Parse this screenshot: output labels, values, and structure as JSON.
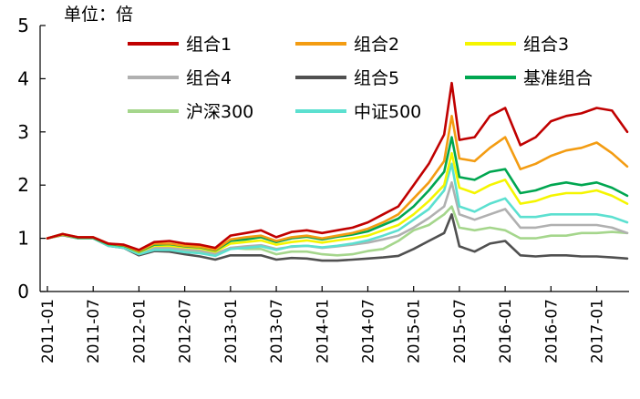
{
  "chart_data": {
    "type": "line",
    "unit_label": "单位：倍",
    "xlabel": "",
    "ylabel": "",
    "ylim": [
      0,
      5
    ],
    "y_ticks": [
      "0",
      "1",
      "2",
      "3",
      "4",
      "5"
    ],
    "x_range": [
      "2011-01",
      "2017-05"
    ],
    "x_ticks": [
      "2011-01",
      "2011-07",
      "2012-01",
      "2012-07",
      "2013-01",
      "2013-07",
      "2014-01",
      "2014-07",
      "2015-01",
      "2015-07",
      "2016-01",
      "2016-07",
      "2017-01"
    ],
    "grid": false,
    "legend_position": "top",
    "x": [
      "2011-01",
      "2011-03",
      "2011-05",
      "2011-07",
      "2011-09",
      "2011-11",
      "2012-01",
      "2012-03",
      "2012-05",
      "2012-07",
      "2012-09",
      "2012-11",
      "2013-01",
      "2013-03",
      "2013-05",
      "2013-07",
      "2013-09",
      "2013-11",
      "2014-01",
      "2014-03",
      "2014-05",
      "2014-07",
      "2014-09",
      "2014-11",
      "2015-01",
      "2015-03",
      "2015-05",
      "2015-06",
      "2015-07",
      "2015-09",
      "2015-11",
      "2016-01",
      "2016-03",
      "2016-05",
      "2016-07",
      "2016-09",
      "2016-11",
      "2017-01",
      "2017-03",
      "2017-05"
    ],
    "series": [
      {
        "name": "组合1",
        "color": "#c00000",
        "values": [
          1.0,
          1.08,
          1.02,
          1.02,
          0.9,
          0.88,
          0.78,
          0.93,
          0.95,
          0.9,
          0.88,
          0.82,
          1.05,
          1.1,
          1.15,
          1.02,
          1.12,
          1.15,
          1.1,
          1.15,
          1.2,
          1.3,
          1.45,
          1.6,
          2.0,
          2.4,
          2.95,
          3.92,
          2.85,
          2.9,
          3.3,
          3.45,
          2.75,
          2.9,
          3.2,
          3.3,
          3.35,
          3.45,
          3.4,
          3.0
        ]
      },
      {
        "name": "组合2",
        "color": "#f39c12",
        "values": [
          1.0,
          1.08,
          1.02,
          1.02,
          0.9,
          0.87,
          0.76,
          0.9,
          0.9,
          0.86,
          0.84,
          0.78,
          0.98,
          1.02,
          1.05,
          0.95,
          1.02,
          1.05,
          1.0,
          1.05,
          1.1,
          1.18,
          1.3,
          1.45,
          1.75,
          2.05,
          2.45,
          3.3,
          2.5,
          2.45,
          2.7,
          2.9,
          2.3,
          2.4,
          2.55,
          2.65,
          2.7,
          2.8,
          2.6,
          2.35
        ]
      },
      {
        "name": "组合3",
        "color": "#f5f500",
        "values": [
          1.0,
          1.07,
          1.01,
          1.01,
          0.89,
          0.86,
          0.74,
          0.86,
          0.86,
          0.83,
          0.81,
          0.75,
          0.9,
          0.93,
          0.96,
          0.88,
          0.93,
          0.96,
          0.92,
          0.96,
          1.0,
          1.05,
          1.15,
          1.25,
          1.45,
          1.7,
          2.0,
          2.6,
          1.95,
          1.85,
          2.0,
          2.1,
          1.65,
          1.7,
          1.8,
          1.85,
          1.85,
          1.9,
          1.8,
          1.65
        ]
      },
      {
        "name": "组合4",
        "color": "#b0b0b0",
        "values": [
          1.0,
          1.07,
          1.01,
          1.01,
          0.88,
          0.85,
          0.72,
          0.82,
          0.82,
          0.79,
          0.77,
          0.71,
          0.82,
          0.85,
          0.87,
          0.8,
          0.84,
          0.86,
          0.82,
          0.85,
          0.88,
          0.92,
          0.98,
          1.05,
          1.2,
          1.38,
          1.6,
          2.05,
          1.45,
          1.35,
          1.45,
          1.55,
          1.2,
          1.2,
          1.25,
          1.25,
          1.25,
          1.25,
          1.2,
          1.1
        ]
      },
      {
        "name": "组合5",
        "color": "#505050",
        "values": [
          1.0,
          1.06,
          1.0,
          1.0,
          0.86,
          0.82,
          0.68,
          0.76,
          0.75,
          0.7,
          0.66,
          0.6,
          0.68,
          0.68,
          0.68,
          0.6,
          0.63,
          0.62,
          0.58,
          0.58,
          0.6,
          0.62,
          0.64,
          0.67,
          0.8,
          0.95,
          1.1,
          1.45,
          0.85,
          0.75,
          0.9,
          0.95,
          0.68,
          0.66,
          0.68,
          0.68,
          0.66,
          0.66,
          0.64,
          0.62
        ]
      },
      {
        "name": "基准组合",
        "color": "#00a650",
        "values": [
          1.0,
          1.08,
          1.01,
          1.01,
          0.89,
          0.86,
          0.75,
          0.88,
          0.89,
          0.85,
          0.83,
          0.77,
          0.95,
          0.98,
          1.02,
          0.93,
          1.0,
          1.03,
          0.98,
          1.03,
          1.07,
          1.13,
          1.25,
          1.37,
          1.6,
          1.9,
          2.25,
          2.9,
          2.15,
          2.1,
          2.25,
          2.3,
          1.85,
          1.9,
          2.0,
          2.05,
          2.0,
          2.05,
          1.95,
          1.8
        ]
      },
      {
        "name": "沪深300",
        "color": "#a5d68c",
        "values": [
          1.0,
          1.07,
          1.0,
          1.0,
          0.87,
          0.83,
          0.72,
          0.8,
          0.8,
          0.75,
          0.73,
          0.7,
          0.82,
          0.8,
          0.8,
          0.7,
          0.75,
          0.75,
          0.7,
          0.68,
          0.7,
          0.76,
          0.8,
          0.95,
          1.15,
          1.25,
          1.45,
          1.6,
          1.2,
          1.15,
          1.2,
          1.15,
          1.0,
          1.0,
          1.05,
          1.05,
          1.1,
          1.1,
          1.12,
          1.1
        ]
      },
      {
        "name": "中证500",
        "color": "#5ce0d0",
        "values": [
          1.0,
          1.07,
          1.0,
          1.0,
          0.86,
          0.82,
          0.7,
          0.78,
          0.78,
          0.74,
          0.72,
          0.67,
          0.8,
          0.82,
          0.85,
          0.78,
          0.85,
          0.86,
          0.83,
          0.86,
          0.9,
          0.96,
          1.05,
          1.15,
          1.35,
          1.55,
          1.9,
          2.4,
          1.6,
          1.5,
          1.65,
          1.75,
          1.4,
          1.4,
          1.45,
          1.45,
          1.45,
          1.45,
          1.4,
          1.3
        ]
      }
    ]
  }
}
